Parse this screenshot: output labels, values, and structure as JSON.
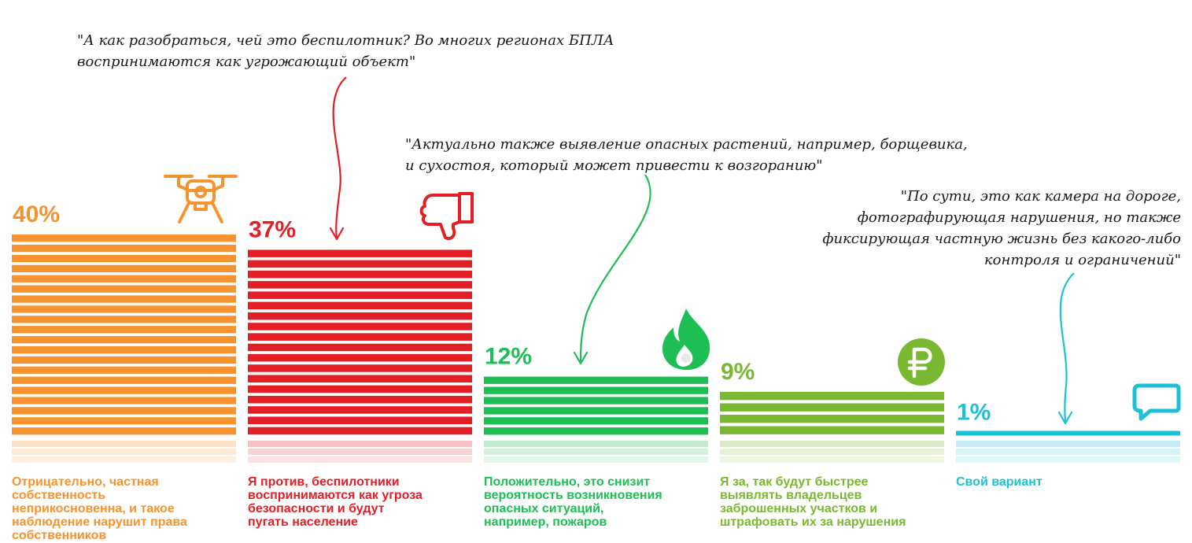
{
  "chart_data": {
    "type": "bar",
    "title": "",
    "ylim": [
      0,
      40
    ],
    "categories": [
      "Отрицательно, частная собственность неприкосновенна, и такое наблюдение нарушит права собственников",
      "Я против, беспилотники воспринимаются как угроза безопасности и будут пугать население",
      "Положительно, это снизит вероятность возникновения опасных ситуаций, например, пожаров",
      "Я за, так будут быстрее выявлять владельцев заброшенных участков и штрафовать их за нарушения",
      "Свой вариант"
    ],
    "values": [
      40,
      37,
      12,
      9,
      1
    ],
    "value_labels": [
      "40%",
      "37%",
      "12%",
      "9%",
      "1%"
    ],
    "colors": [
      "#f7932e",
      "#e31e24",
      "#1dbf55",
      "#79b830",
      "#1cc1d6"
    ],
    "icons": [
      "drone-icon",
      "thumbs-down-icon",
      "fire-icon",
      "ruble-icon",
      "chat-icon"
    ]
  },
  "labels": {
    "l1": [
      "Отрицательно, частная",
      "собственность",
      "неприкосновенна, и такое",
      "наблюдение нарушит права",
      "собственников"
    ],
    "l2": [
      "Я против, беспилотники",
      "воспринимаются как угроза",
      "безопасности и будут",
      "пугать население"
    ],
    "l3": [
      "Положительно, это снизит",
      "вероятность возникновения",
      "опасных ситуаций,",
      "например, пожаров"
    ],
    "l4": [
      "Я за, так будут быстрее",
      "выявлять владельцев",
      "заброшенных участков и",
      "штрафовать их за нарушения"
    ],
    "l5": [
      "Свой вариант"
    ]
  },
  "quotes": {
    "q1": [
      "\"А как разобраться, чей это беспилотник? Во многих регионах БПЛА",
      "воспринимаются как угрожающий объект\""
    ],
    "q2": [
      "\"Актуально также выявление опасных растений, например, борщевика,",
      "и сухостоя, который может привести к возгоранию\""
    ],
    "q3": [
      "\"По сути, это как камера на дороге,",
      "фотографирующая нарушения, но также",
      "фиксирующая частную жизнь без какого-либо",
      "контроля и ограничений\""
    ]
  }
}
